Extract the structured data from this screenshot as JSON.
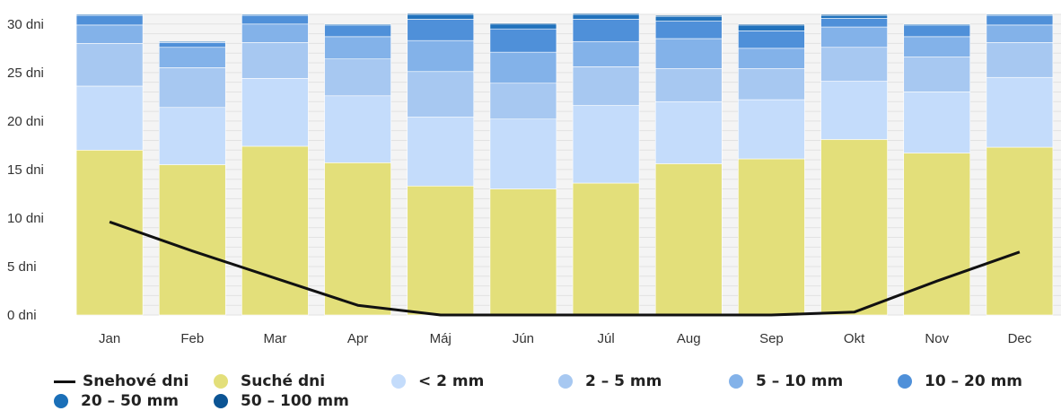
{
  "chart_data": {
    "type": "bar",
    "stacked": true,
    "categories": [
      "Jan",
      "Feb",
      "Mar",
      "Apr",
      "Máj",
      "Jún",
      "Júl",
      "Aug",
      "Sep",
      "Okt",
      "Nov",
      "Dec"
    ],
    "y_ticks": [
      "0 dni",
      "5 dni",
      "10 dni",
      "15 dni",
      "20 dni",
      "25 dni",
      "30 dni"
    ],
    "ylim": [
      0,
      31
    ],
    "series": [
      {
        "name": "Suché dni",
        "color": "#e3df7a",
        "values": [
          17.0,
          15.5,
          17.4,
          15.7,
          13.3,
          13.0,
          13.6,
          15.6,
          16.1,
          18.1,
          16.7,
          17.3
        ]
      },
      {
        "name": "< 2 mm",
        "color": "#c4dcfb",
        "values": [
          6.6,
          5.9,
          7.0,
          6.9,
          7.1,
          7.2,
          8.0,
          6.4,
          6.1,
          6.0,
          6.3,
          7.2
        ]
      },
      {
        "name": "2 - 5 mm",
        "color": "#a7c8f1",
        "values": [
          4.4,
          4.1,
          3.7,
          3.8,
          4.7,
          3.7,
          4.0,
          3.4,
          3.2,
          3.5,
          3.6,
          3.6
        ]
      },
      {
        "name": "5 - 10 mm",
        "color": "#83b2e9",
        "values": [
          1.9,
          2.1,
          1.9,
          2.3,
          3.2,
          3.2,
          2.6,
          3.1,
          2.1,
          2.1,
          2.1,
          1.8
        ]
      },
      {
        "name": "10 - 20 mm",
        "color": "#4f90d9",
        "values": [
          1.0,
          0.5,
          0.9,
          1.2,
          2.2,
          2.4,
          2.3,
          1.8,
          1.8,
          0.9,
          1.2,
          1.0
        ]
      },
      {
        "name": "20 - 50 mm",
        "color": "#2172bc",
        "values": [
          0.1,
          0.1,
          0.1,
          0.1,
          0.5,
          0.5,
          0.5,
          0.5,
          0.6,
          0.3,
          0.1,
          0.1
        ]
      },
      {
        "name": "50 - 100 mm",
        "color": "#0b5494",
        "values": [
          0.0,
          0.0,
          0.0,
          0.0,
          0.1,
          0.1,
          0.1,
          0.1,
          0.1,
          0.1,
          0.0,
          0.0
        ]
      }
    ],
    "line_series": {
      "name": "Snehové dni",
      "color": "#111111",
      "values": [
        9.6,
        6.6,
        3.8,
        1.0,
        0.0,
        0.0,
        0.0,
        0.0,
        0.0,
        0.3,
        3.5,
        6.5
      ]
    },
    "legend": [
      {
        "name": "Snehové dni",
        "symbol": "line",
        "color": "#111111"
      },
      {
        "name": "Suché dni",
        "symbol": "dot",
        "color": "#e3df7a"
      },
      {
        "name": "< 2 mm",
        "symbol": "dot",
        "color": "#c4dcfb"
      },
      {
        "name": "2 – 5 mm",
        "symbol": "dot",
        "color": "#a7c8f1"
      },
      {
        "name": "5 – 10 mm",
        "symbol": "dot",
        "color": "#83b2e9"
      },
      {
        "name": "10 – 20 mm",
        "symbol": "dot",
        "color": "#4f90d9"
      },
      {
        "name": "20 – 50 mm",
        "symbol": "dot",
        "color": "#1a6fb8"
      },
      {
        "name": "50 – 100 mm",
        "symbol": "dot",
        "color": "#0b5494"
      }
    ],
    "legend_position": "bottom",
    "grid": true
  }
}
